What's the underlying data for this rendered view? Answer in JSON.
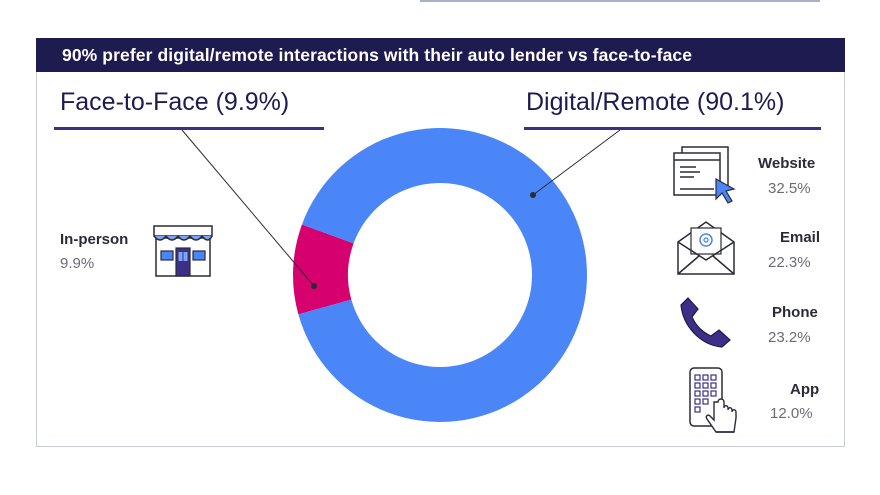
{
  "title": "90% prefer digital/remote interactions with their auto lender vs face-to-face",
  "groups": {
    "face": "Face-to-Face (9.9%)",
    "digital": "Digital/Remote (90.1%)"
  },
  "items": [
    {
      "name": "In-person",
      "value": "9.9%",
      "icon": "storefront-icon"
    },
    {
      "name": "Website",
      "value": "32.5%",
      "icon": "browser-window-icon"
    },
    {
      "name": "Email",
      "value": "22.3%",
      "icon": "envelope-icon"
    },
    {
      "name": "Phone",
      "value": "23.2%",
      "icon": "phone-icon"
    },
    {
      "name": "App",
      "value": "12.0%",
      "icon": "mobile-app-icon"
    }
  ],
  "colors": {
    "banner": "#1d1b4f",
    "digital": "#4a86f7",
    "face": "#d6006e",
    "accent": "#3b2f86"
  },
  "chart_data": {
    "type": "pie",
    "donut": true,
    "title": "90% prefer digital/remote interactions with their auto lender vs face-to-face",
    "categories": [
      "Face-to-Face",
      "Digital/Remote"
    ],
    "values": [
      9.9,
      90.1
    ],
    "breakdown": {
      "Face-to-Face": [
        {
          "label": "In-person",
          "value": 9.9
        }
      ],
      "Digital/Remote": [
        {
          "label": "Website",
          "value": 32.5
        },
        {
          "label": "Email",
          "value": 22.3
        },
        {
          "label": "Phone",
          "value": 23.2
        },
        {
          "label": "App",
          "value": 12.0
        }
      ]
    }
  }
}
